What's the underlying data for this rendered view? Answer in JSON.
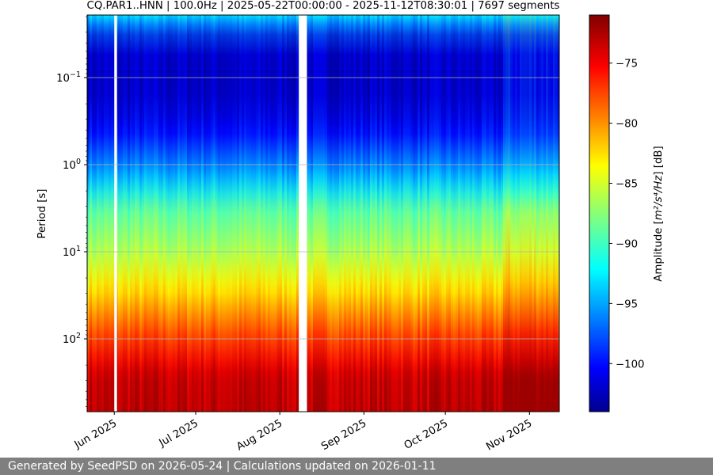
{
  "chart_data": {
    "type": "heatmap",
    "title": "CQ.PAR1..HNN | 100.0Hz | 2025-05-22T00:00:00 - 2025-11-12T08:30:01 | 7697 segments",
    "ylabel": "Period [s]",
    "xlabel": "",
    "y_scale": "log",
    "y_inverted": true,
    "y_ticks": [
      {
        "value": 0.1,
        "base": "10",
        "exp": "−1"
      },
      {
        "value": 1,
        "base": "10",
        "exp": "0"
      },
      {
        "value": 10,
        "base": "10",
        "exp": "1"
      },
      {
        "value": 100,
        "base": "10",
        "exp": "2"
      }
    ],
    "x_ticks": [
      "Jun 2025",
      "Jul 2025",
      "Aug 2025",
      "Sep 2025",
      "Oct 2025",
      "Nov 2025"
    ],
    "x_range": [
      "2025-05-22",
      "2025-11-12"
    ],
    "data_gaps": [
      {
        "start": "2025-06-01",
        "end": "2025-06-02"
      },
      {
        "start": "2025-08-08",
        "end": "2025-08-11"
      }
    ],
    "colorbar": {
      "label_prefix": "Amplitude [",
      "label_unit": "m²/s⁴/Hz",
      "label_suffix": "] [dB]",
      "ticks": [
        "−75",
        "−80",
        "−85",
        "−90",
        "−95",
        "−100"
      ],
      "colormap": "jet",
      "range": [
        -104,
        -71
      ]
    },
    "grid": true,
    "amplitude_profile_db": [
      {
        "period": 0.02,
        "amplitude": -93
      },
      {
        "period": 0.03,
        "amplitude": -101
      },
      {
        "period": 0.1,
        "amplitude": -102
      },
      {
        "period": 0.3,
        "amplitude": -101
      },
      {
        "period": 1,
        "amplitude": -96
      },
      {
        "period": 3,
        "amplitude": -89
      },
      {
        "period": 10,
        "amplitude": -86
      },
      {
        "period": 30,
        "amplitude": -82
      },
      {
        "period": 100,
        "amplitude": -77
      },
      {
        "period": 300,
        "amplitude": -73
      }
    ]
  },
  "footer": {
    "text": "Generated by SeedPSD on 2026-05-24 | Calculations updated on 2026-01-11"
  }
}
